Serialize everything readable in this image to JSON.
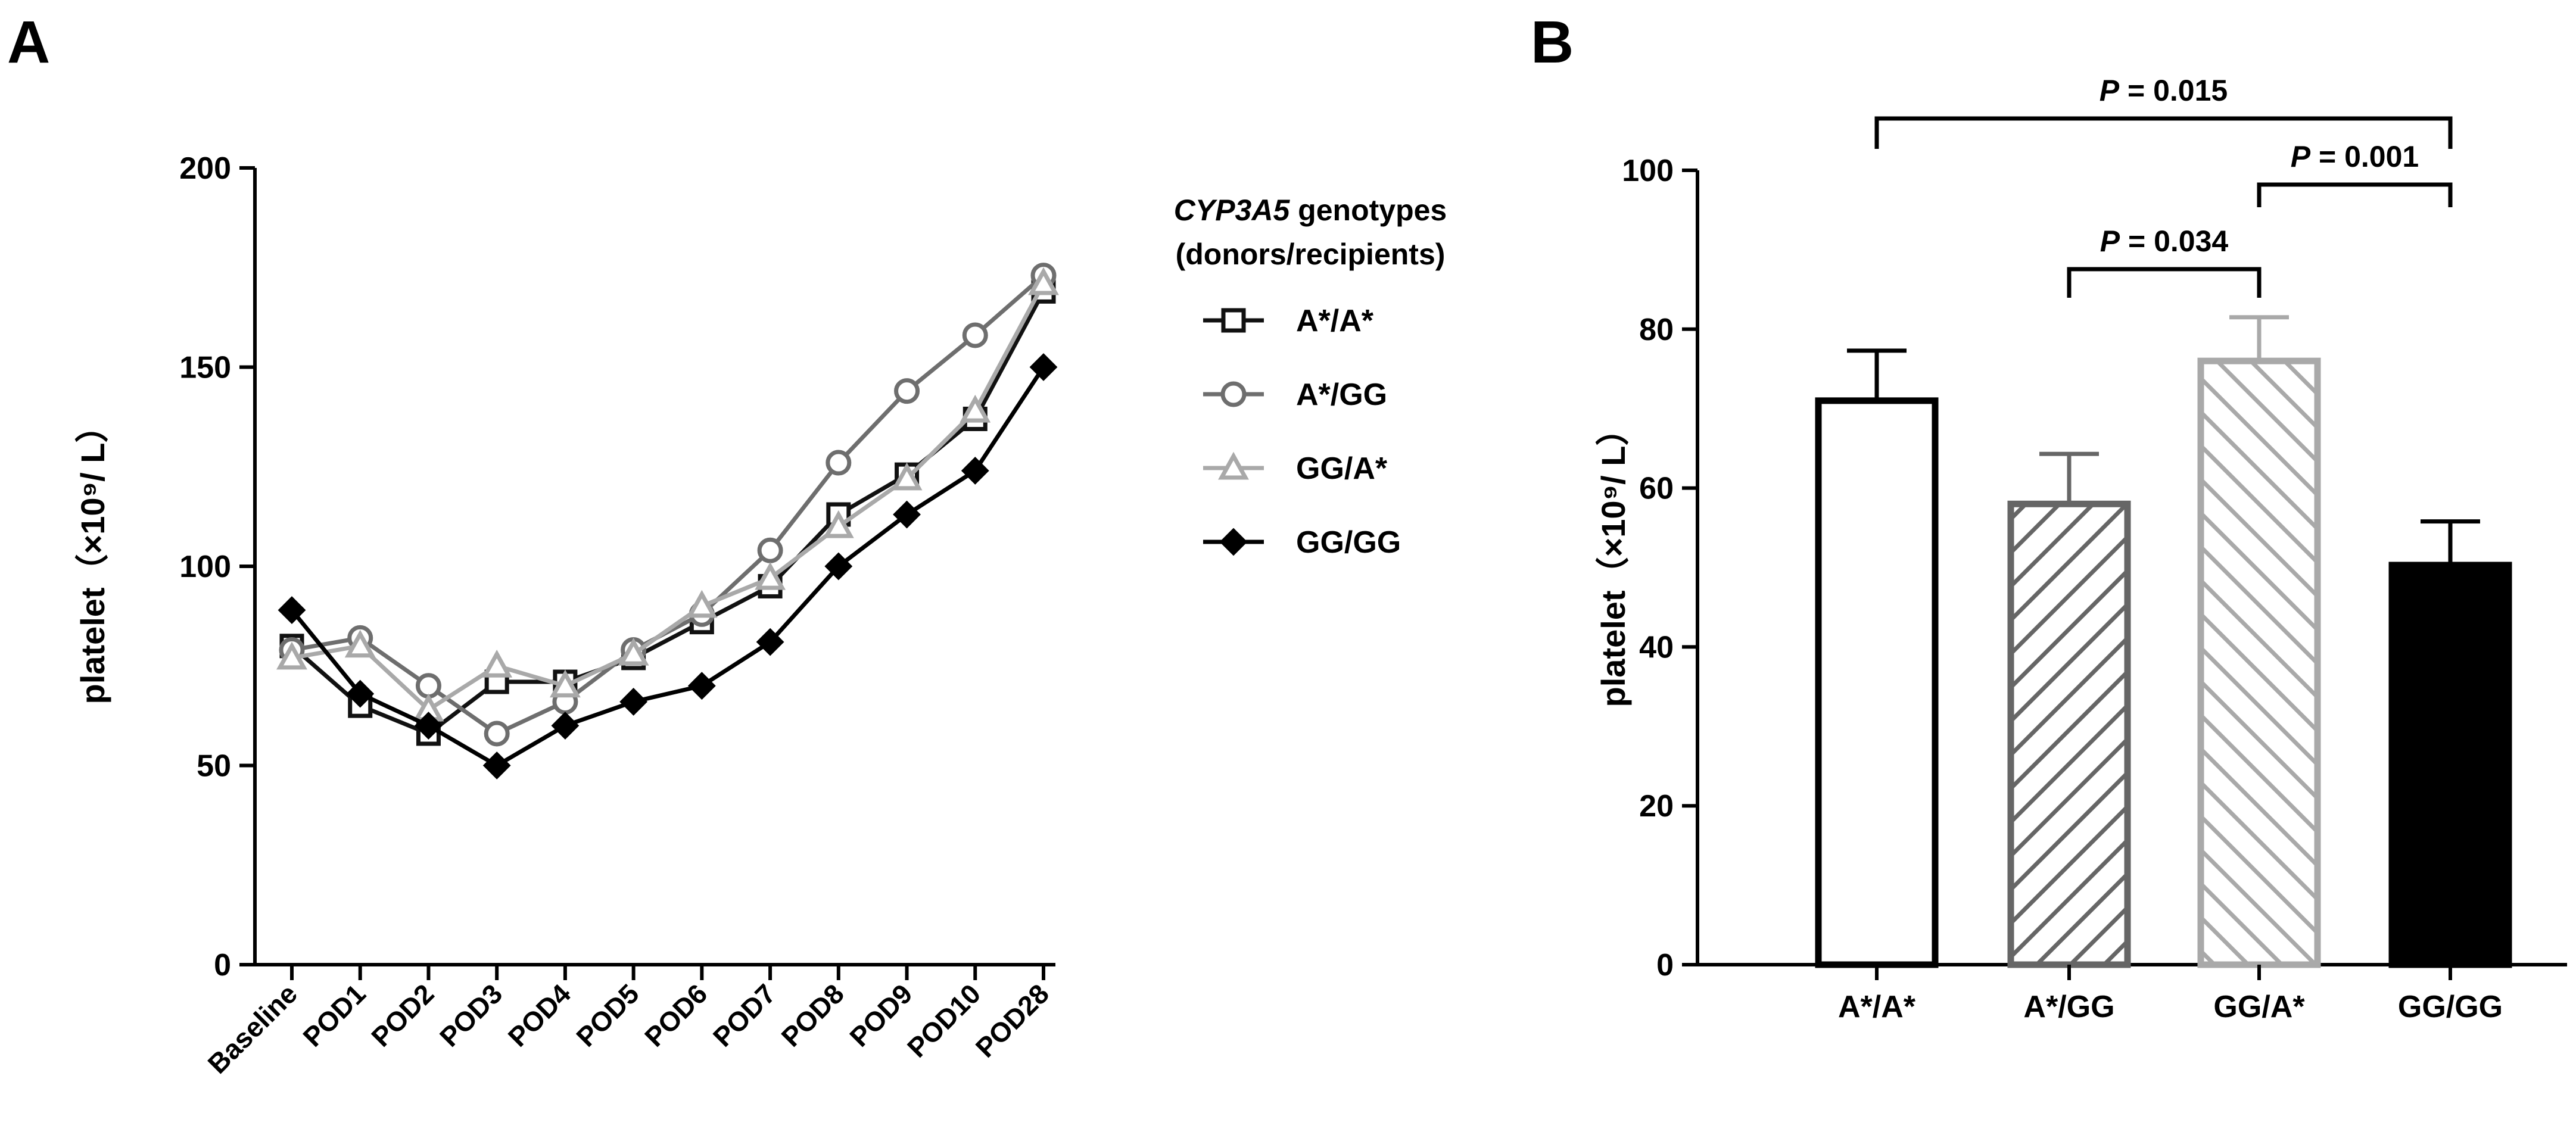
{
  "panel_labels": [
    "A",
    "B"
  ],
  "chart_data": [
    {
      "type": "line",
      "panel": "A",
      "title": "",
      "xlabel": "",
      "ylabel": "platelet（×10⁹/ L）",
      "ylim": [
        0,
        200
      ],
      "yticks": [
        0,
        50,
        100,
        150,
        200
      ],
      "categories": [
        "Baseline",
        "POD1",
        "POD2",
        "POD3",
        "POD4",
        "POD5",
        "POD6",
        "POD7",
        "POD8",
        "POD9",
        "POD10",
        "POD28"
      ],
      "legend": {
        "title_italic": "CYP3A5",
        "title_rest": " genotypes",
        "title_line2": "(donors/recipients)",
        "placement": "right"
      },
      "series": [
        {
          "name": "A*/A*",
          "marker": "square-open",
          "color": "#111111",
          "values": [
            80,
            65,
            58,
            71,
            71,
            77,
            86,
            95,
            113,
            123,
            137,
            169
          ]
        },
        {
          "name": "A*/GG",
          "marker": "circle-open",
          "color": "#6e6e6e",
          "values": [
            79,
            82,
            70,
            58,
            66,
            79,
            88,
            104,
            126,
            144,
            158,
            173
          ]
        },
        {
          "name": "GG/A*",
          "marker": "triangle-open",
          "color": "#a9a9a9",
          "values": [
            77,
            80,
            64,
            75,
            70,
            78,
            90,
            97,
            110,
            122,
            139,
            171
          ]
        },
        {
          "name": "GG/GG",
          "marker": "diamond-filled",
          "color": "#000000",
          "values": [
            89,
            68,
            60,
            50,
            60,
            66,
            70,
            81,
            100,
            113,
            124,
            150
          ]
        }
      ]
    },
    {
      "type": "bar",
      "panel": "B",
      "title": "",
      "xlabel": "",
      "ylabel": "platelet（×10⁹/ L）",
      "ylim": [
        0,
        100
      ],
      "yticks": [
        0,
        20,
        40,
        60,
        80,
        100
      ],
      "categories": [
        "A*/A*",
        "A*/GG",
        "GG/A*",
        "GG/GG"
      ],
      "values": [
        71,
        58,
        76,
        50.3
      ],
      "error_upper": [
        77.3,
        64.3,
        81.5,
        55.8
      ],
      "styles": [
        {
          "fill": "open",
          "color": "#000000"
        },
        {
          "fill": "hatch",
          "color": "#666666"
        },
        {
          "fill": "hatch",
          "color": "#a9a9a9"
        },
        {
          "fill": "solid",
          "color": "#000000"
        }
      ],
      "comparisons": [
        {
          "from": "A*/A*",
          "to": "GG/GG",
          "label_prefix": "P",
          "label_value": " = 0.015"
        },
        {
          "from": "GG/A*",
          "to": "GG/GG",
          "label_prefix": "P",
          "label_value": " = 0.001"
        },
        {
          "from": "A*/GG",
          "to": "GG/A*",
          "label_prefix": "P",
          "label_value": " = 0.034"
        }
      ]
    }
  ]
}
